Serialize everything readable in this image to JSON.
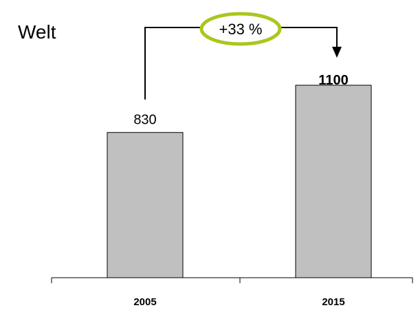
{
  "chart_data": {
    "type": "bar",
    "title": "Welt",
    "categories": [
      "2005",
      "2015"
    ],
    "values": [
      830,
      1100
    ],
    "value_labels": [
      "830",
      "1100"
    ],
    "bold_value_labels": [
      false,
      true
    ],
    "ylim": [
      0,
      1300
    ],
    "grid": false,
    "legend": "none",
    "annotation": {
      "text": "+33 %",
      "from_category": "2005",
      "to_category": "2015"
    },
    "colors": {
      "bar_fill": "#c0c0c0",
      "bar_stroke": "#000000",
      "annotation_ring": "#a8c81e",
      "axis": "#000000"
    }
  }
}
